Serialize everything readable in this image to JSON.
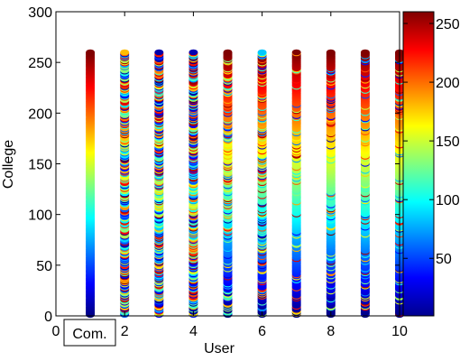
{
  "chart_data": {
    "type": "scatter",
    "title": "",
    "xlabel": "User",
    "ylabel": "College",
    "xlim": [
      0,
      10
    ],
    "ylim": [
      0,
      300
    ],
    "x_ticks": [
      0,
      2,
      4,
      6,
      8,
      10
    ],
    "y_ticks": [
      0,
      50,
      100,
      150,
      200,
      250,
      300
    ],
    "x": [
      1,
      2,
      3,
      4,
      5,
      6,
      7,
      8,
      9,
      10
    ],
    "y_range_per_x": [
      1,
      260
    ],
    "point_count_per_x": 260,
    "color_encoding": "jet",
    "colorbar": {
      "range": [
        1,
        260
      ],
      "ticks": [
        50,
        100,
        150,
        200,
        250
      ]
    },
    "annotation": {
      "text": "Com.",
      "boxed": true,
      "near_x": 1
    },
    "grid": false,
    "legend": "none"
  }
}
